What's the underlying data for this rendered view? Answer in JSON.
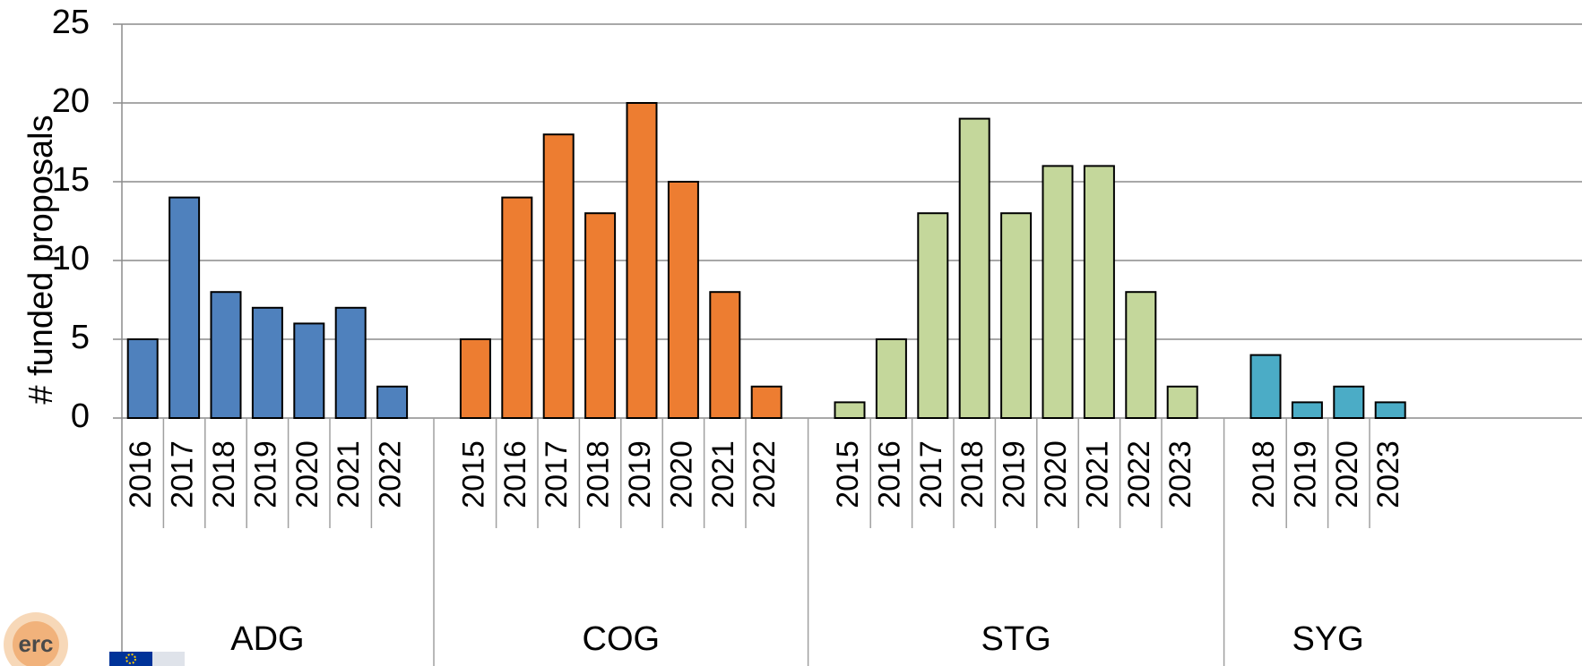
{
  "chart_data": {
    "type": "bar",
    "title": "",
    "xlabel": "",
    "ylabel": "# funded proposals",
    "ylim": [
      0,
      25
    ],
    "yticks": [
      0,
      5,
      10,
      15,
      20,
      25
    ],
    "grid": true,
    "legend": "none",
    "groups": [
      {
        "name": "ADG",
        "color": "#4f81bd",
        "categories": [
          "2016",
          "2017",
          "2018",
          "2019",
          "2020",
          "2021",
          "2022"
        ],
        "values": [
          5,
          14,
          8,
          7,
          6,
          7,
          2
        ]
      },
      {
        "name": "COG",
        "color": "#ed7d31",
        "categories": [
          "2015",
          "2016",
          "2017",
          "2018",
          "2019",
          "2020",
          "2021",
          "2022"
        ],
        "values": [
          5,
          14,
          18,
          13,
          20,
          15,
          8,
          2
        ]
      },
      {
        "name": "STG",
        "color": "#c4d79b",
        "categories": [
          "2015",
          "2016",
          "2017",
          "2018",
          "2019",
          "2020",
          "2021",
          "2022",
          "2023"
        ],
        "values": [
          1,
          5,
          13,
          19,
          13,
          16,
          16,
          8,
          2
        ]
      },
      {
        "name": "SYG",
        "color": "#4bacc6",
        "categories": [
          "2018",
          "2019",
          "2020",
          "2023"
        ],
        "values": [
          4,
          1,
          2,
          1
        ]
      }
    ]
  },
  "logos": {
    "erc": "erc",
    "eu_flag": "eu-flag-icon"
  }
}
